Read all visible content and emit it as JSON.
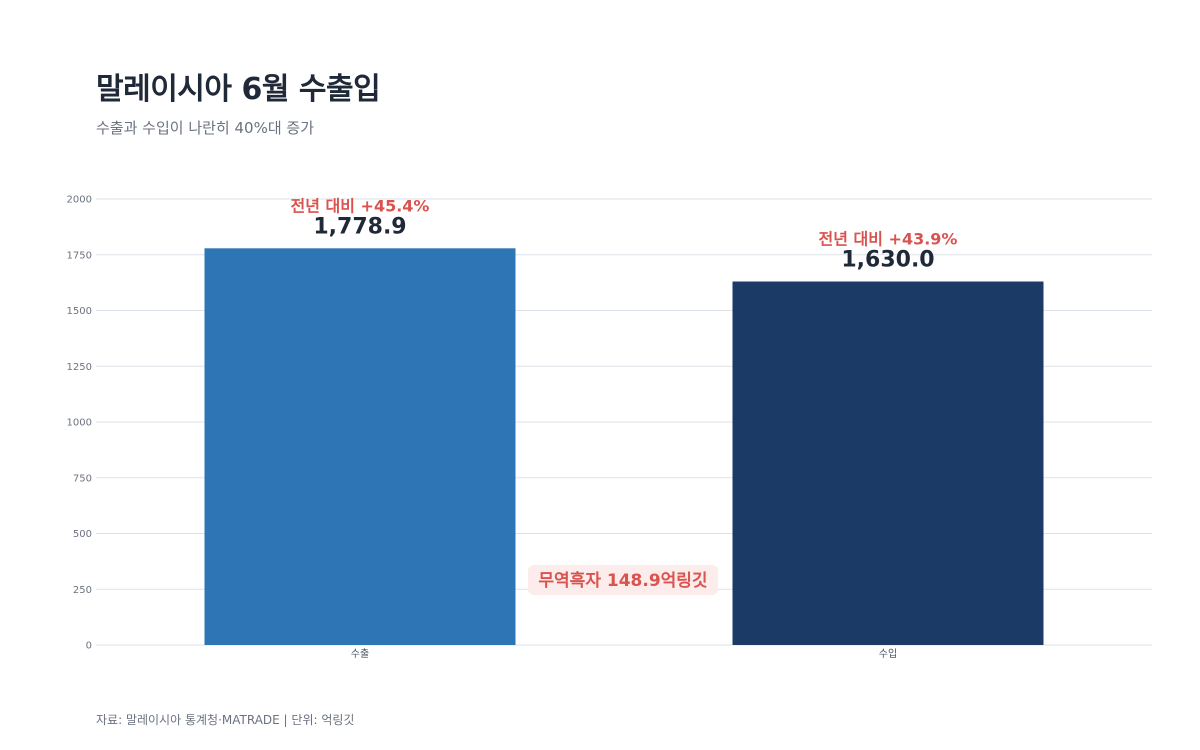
{
  "header": {
    "title": "말레이시아 6월 수출입",
    "subtitle": "수출과 수입이 나란히 40%대 증가"
  },
  "footer": {
    "source": "자료: 말레이시아 통계청·MATRADE  |  단위: 억링깃"
  },
  "chart_data": {
    "type": "bar",
    "categories": [
      "수출",
      "수입"
    ],
    "values": [
      1778.9,
      1630.0
    ],
    "value_labels": [
      "1,778.9",
      "1,630.0"
    ],
    "change_labels": [
      "전년 대비 +45.4%",
      "전년 대비 +43.9%"
    ],
    "bar_colors": [
      "#2e75b6",
      "#1b3a66"
    ],
    "ylim": [
      0,
      2000
    ],
    "yticks": [
      "0",
      "250",
      "500",
      "750",
      "1000",
      "1250",
      "1500",
      "1750",
      "2000"
    ],
    "grid": true,
    "annotation": "무역흑자 148.9억링깃",
    "annotation_color": "#d9534f",
    "annotation_bg": "#fdecec"
  }
}
